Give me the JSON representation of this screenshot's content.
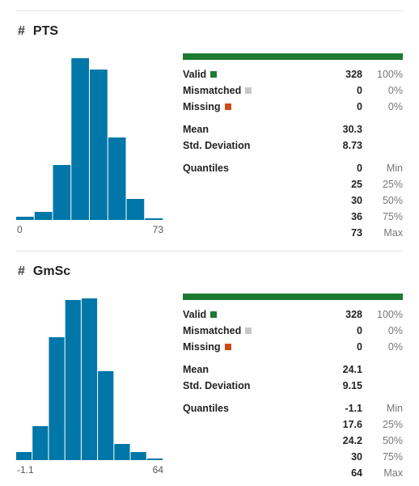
{
  "colors": {
    "hist_bar": "#0077a8",
    "valid": "#1d7a33",
    "mismatched": "#c8c8c8",
    "missing": "#cc4b14"
  },
  "columns": [
    {
      "name": "PTS",
      "axis_min": "0",
      "axis_max": "73",
      "hist_rel": [
        0.02,
        0.05,
        0.34,
        1.0,
        0.93,
        0.51,
        0.13,
        0.01
      ],
      "valid_label": "Valid",
      "valid_count": "328",
      "valid_pct": "100%",
      "mismatched_label": "Mismatched",
      "mismatched_count": "0",
      "mismatched_pct": "0%",
      "missing_label": "Missing",
      "missing_count": "0",
      "missing_pct": "0%",
      "mean_label": "Mean",
      "mean": "30.3",
      "std_label": "Std. Deviation",
      "std": "8.73",
      "quantiles_label": "Quantiles",
      "quantiles": [
        {
          "value": "0",
          "label": "Min"
        },
        {
          "value": "25",
          "label": "25%"
        },
        {
          "value": "30",
          "label": "50%"
        },
        {
          "value": "36",
          "label": "75%"
        },
        {
          "value": "73",
          "label": "Max"
        }
      ]
    },
    {
      "name": "GmSc",
      "axis_min": "-1.1",
      "axis_max": "64",
      "hist_rel": [
        0.05,
        0.21,
        0.76,
        0.99,
        1.0,
        0.55,
        0.1,
        0.05,
        0.01
      ],
      "valid_label": "Valid",
      "valid_count": "328",
      "valid_pct": "100%",
      "mismatched_label": "Mismatched",
      "mismatched_count": "0",
      "mismatched_pct": "0%",
      "missing_label": "Missing",
      "missing_count": "0",
      "missing_pct": "0%",
      "mean_label": "Mean",
      "mean": "24.1",
      "std_label": "Std. Deviation",
      "std": "9.15",
      "quantiles_label": "Quantiles",
      "quantiles": [
        {
          "value": "-1.1",
          "label": "Min"
        },
        {
          "value": "17.6",
          "label": "25%"
        },
        {
          "value": "24.2",
          "label": "50%"
        },
        {
          "value": "30",
          "label": "75%"
        },
        {
          "value": "64",
          "label": "Max"
        }
      ]
    }
  ]
}
